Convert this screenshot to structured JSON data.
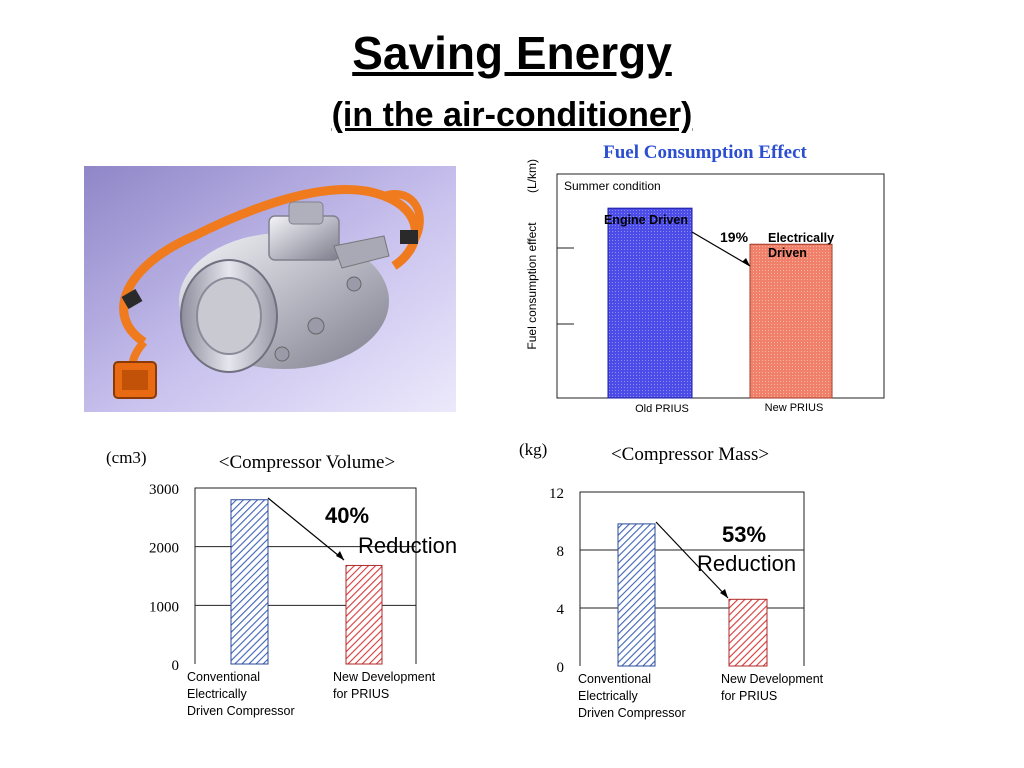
{
  "slide": {
    "title": "Saving Energy",
    "subtitle": "(in the air-conditioner)"
  },
  "photo": {
    "subject": "electric-compressor"
  },
  "colors": {
    "blue_bar": "#4c4ce8",
    "salmon_bar": "#f0806a",
    "blue_hatch": "#3f63b8",
    "red_hatch": "#d83a3a",
    "title_blue": "#2b4fd0"
  },
  "chart_data": [
    {
      "type": "bar",
      "title": "Fuel Consumption Effect",
      "ylabel": "Fuel consumption effect",
      "yunit": "(L/km)",
      "annotation_top": "Summer condition",
      "categories": [
        "Old PRIUS",
        "New PRIUS"
      ],
      "bar_labels": [
        "Engine Driven",
        "Electrically Driven"
      ],
      "values": [
        1.0,
        0.81
      ],
      "reduction_label": "19%",
      "ylim": [
        0,
        1.18
      ],
      "yticks": [
        0.39,
        0.79
      ],
      "grid": false,
      "legend": "none"
    },
    {
      "type": "bar",
      "title": "<Compressor Volume>",
      "yunit": "(cm3)",
      "categories": [
        "Conventional Electrically Driven Compressor",
        "New Development for PRIUS"
      ],
      "category_lines": [
        [
          "Conventional",
          "Electrically",
          "Driven Compressor"
        ],
        [
          "New Development",
          "for PRIUS"
        ]
      ],
      "values": [
        2800,
        1680
      ],
      "ylim": [
        0,
        3000
      ],
      "yticks": [
        0,
        1000,
        2000,
        3000
      ],
      "reduction_percent": "40%",
      "reduction_text": "Reduction",
      "grid": true,
      "legend": "none"
    },
    {
      "type": "bar",
      "title": "<Compressor Mass>",
      "yunit": "(kg)",
      "categories": [
        "Conventional Electrically Driven Compressor",
        "New Development for PRIUS"
      ],
      "category_lines": [
        [
          "Conventional",
          "Electrically",
          "Driven Compressor"
        ],
        [
          "New Development",
          "for PRIUS"
        ]
      ],
      "values": [
        9.8,
        4.6
      ],
      "ylim": [
        0,
        12
      ],
      "yticks": [
        0,
        4,
        8,
        12
      ],
      "reduction_percent": "53%",
      "reduction_text": "Reduction",
      "grid": true,
      "legend": "none"
    }
  ]
}
